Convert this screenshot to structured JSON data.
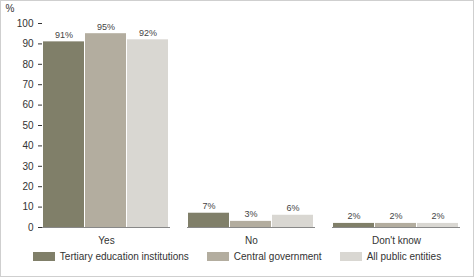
{
  "chart_data": {
    "type": "bar",
    "ylabel": "%",
    "categories": [
      "Yes",
      "No",
      "Don't know"
    ],
    "series": [
      {
        "name": "Tertiary education institutions",
        "color": "#807f69",
        "values": [
          91,
          7,
          2
        ],
        "value_labels": [
          "91%",
          "7%",
          "2%"
        ]
      },
      {
        "name": "Central government",
        "color": "#b3ad9f",
        "values": [
          95,
          3,
          2
        ],
        "value_labels": [
          "95%",
          "3%",
          "2%"
        ]
      },
      {
        "name": "All public entities",
        "color": "#d9d7d2",
        "values": [
          92,
          6,
          2
        ],
        "value_labels": [
          "92%",
          "6%",
          "2%"
        ]
      }
    ],
    "ylim": [
      0,
      100
    ],
    "yticks": [
      0,
      10,
      20,
      30,
      40,
      50,
      60,
      70,
      80,
      90,
      100
    ],
    "grid": false,
    "data_labels": true,
    "legend": "bottom"
  }
}
